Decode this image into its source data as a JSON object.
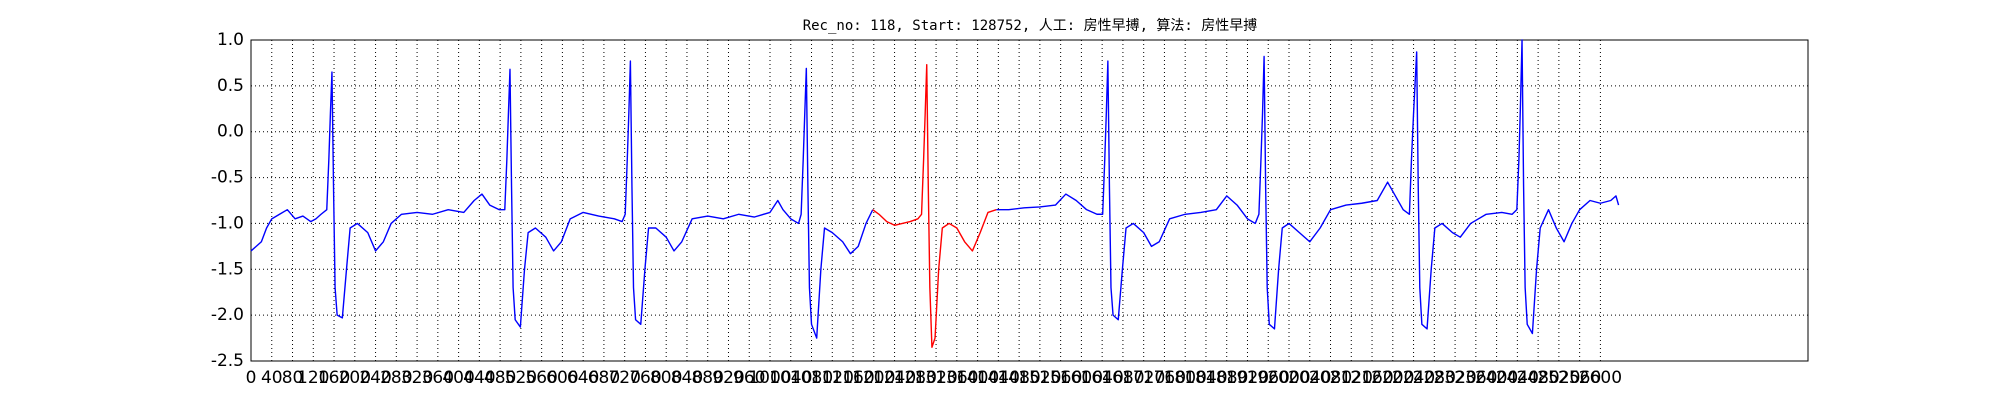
{
  "chart_data": {
    "type": "line",
    "title": "Rec_no: 118, Start: 128752, 人工: 房性早搏, 算法: 房性早搏",
    "xlim": [
      0,
      3000
    ],
    "xticks": [
      0,
      40,
      80,
      120,
      160,
      200,
      240,
      280,
      320,
      360,
      400,
      440,
      480,
      520,
      560,
      600,
      640,
      680,
      720,
      760,
      800,
      840,
      880,
      920,
      960,
      1000,
      1040,
      1080,
      1120,
      1160,
      1200,
      1240,
      1280,
      1320,
      1360,
      1400,
      1440,
      1480,
      1520,
      1560,
      1600,
      1640,
      1680,
      1720,
      1760,
      1800,
      1840,
      1880,
      1920,
      1960,
      2000,
      2040,
      2080,
      2120,
      2160,
      2200,
      2240,
      2280,
      2320,
      2360,
      2400,
      2440,
      2480,
      2520,
      2560,
      2600
    ],
    "ylim": [
      -2.5,
      1.0
    ],
    "yticks": [
      {
        "value": -2.5,
        "label": "-2.5"
      },
      {
        "value": -2.0,
        "label": "-2.0"
      },
      {
        "value": -1.5,
        "label": "-1.5"
      },
      {
        "value": -1.0,
        "label": "-1.0"
      },
      {
        "value": -0.5,
        "label": "-0.5"
      },
      {
        "value": 0.0,
        "label": "0.0"
      },
      {
        "value": 0.5,
        "label": "0.5"
      },
      {
        "value": 1.0,
        "label": "1.0"
      }
    ],
    "grid": true,
    "series": [
      {
        "color": "#0000ff",
        "x": [
          0,
          10,
          20,
          30,
          40,
          55,
          70,
          85,
          100,
          115,
          125,
          135,
          146,
          150,
          153,
          156,
          159,
          162,
          166,
          176,
          184,
          191,
          205,
          225,
          240,
          255,
          270,
          290,
          320,
          350,
          380,
          410,
          430,
          445,
          460,
          478,
          489,
          493,
          496,
          499,
          502,
          505,
          509,
          519,
          527,
          534,
          548,
          568,
          583,
          598,
          615,
          640,
          670,
          700,
          715,
          721,
          725,
          728,
          731,
          734,
          737,
          741,
          751,
          759,
          766,
          780,
          800,
          815,
          830,
          850,
          880,
          910,
          940,
          970,
          1000,
          1015,
          1025,
          1040,
          1055,
          1060,
          1064,
          1067,
          1070,
          1073,
          1076,
          1080,
          1090,
          1098,
          1105,
          1120,
          1140,
          1155,
          1170,
          1185,
          1198,
          1300,
          1436,
          1460,
          1490,
          1520,
          1550,
          1570,
          1590,
          1610,
          1630,
          1641,
          1645,
          1648,
          1651,
          1654,
          1657,
          1661,
          1671,
          1679,
          1686,
          1700,
          1720,
          1735,
          1750,
          1770,
          1800,
          1830,
          1860,
          1880,
          1900,
          1920,
          1935,
          1942,
          1946,
          1949,
          1952,
          1955,
          1958,
          1962,
          1972,
          1980,
          1987,
          2000,
          2020,
          2040,
          2060,
          2080,
          2110,
          2140,
          2170,
          2190,
          2205,
          2220,
          2232,
          2236,
          2240,
          2246,
          2249,
          2252,
          2256,
          2266,
          2274,
          2281,
          2295,
          2315,
          2330,
          2350,
          2380,
          2410,
          2430,
          2439,
          2443,
          2446,
          2449,
          2452,
          2455,
          2459,
          2469,
          2477,
          2484,
          2500,
          2515,
          2530,
          2545,
          2560,
          2580,
          2600,
          2620,
          2630,
          2635
        ],
        "values": [
          -1.3,
          -1.25,
          -1.2,
          -1.05,
          -0.95,
          -0.9,
          -0.85,
          -0.95,
          -0.92,
          -0.98,
          -0.95,
          -0.9,
          -0.85,
          -0.3,
          0.2,
          0.65,
          -0.6,
          -1.7,
          -2.0,
          -2.03,
          -1.5,
          -1.05,
          -1.0,
          -1.1,
          -1.3,
          -1.2,
          -1.0,
          -0.9,
          -0.88,
          -0.9,
          -0.85,
          -0.88,
          -0.75,
          -0.68,
          -0.8,
          -0.85,
          -0.85,
          -0.3,
          0.2,
          0.68,
          -0.6,
          -1.7,
          -2.05,
          -2.13,
          -1.5,
          -1.1,
          -1.05,
          -1.15,
          -1.3,
          -1.2,
          -0.95,
          -0.88,
          -0.92,
          -0.95,
          -0.98,
          -0.9,
          -0.3,
          0.2,
          0.77,
          -0.6,
          -1.7,
          -2.05,
          -2.1,
          -1.5,
          -1.05,
          -1.05,
          -1.15,
          -1.3,
          -1.2,
          -0.95,
          -0.92,
          -0.95,
          -0.9,
          -0.93,
          -0.88,
          -0.75,
          -0.85,
          -0.95,
          -1.0,
          -0.9,
          -0.3,
          0.2,
          0.69,
          -0.6,
          -1.7,
          -2.1,
          -2.25,
          -1.5,
          -1.05,
          -1.1,
          -1.2,
          -1.33,
          -1.25,
          -1.0,
          -0.85,
          null,
          -0.85,
          -0.85,
          -0.83,
          -0.82,
          -0.8,
          -0.68,
          -0.75,
          -0.85,
          -0.9,
          -0.9,
          -0.3,
          0.2,
          0.77,
          -0.6,
          -1.7,
          -2.0,
          -2.05,
          -1.5,
          -1.05,
          -1.0,
          -1.1,
          -1.25,
          -1.2,
          -0.95,
          -0.9,
          -0.88,
          -0.85,
          -0.7,
          -0.8,
          -0.95,
          -1.0,
          -0.9,
          -0.3,
          0.2,
          0.82,
          -0.6,
          -1.7,
          -2.1,
          -2.15,
          -1.5,
          -1.05,
          -1.0,
          -1.1,
          -1.2,
          -1.05,
          -0.85,
          -0.8,
          -0.78,
          -0.75,
          -0.55,
          -0.7,
          -0.85,
          -0.9,
          -0.3,
          0.2,
          0.87,
          -0.6,
          -1.7,
          -2.1,
          -2.15,
          -1.5,
          -1.05,
          -1.0,
          -1.1,
          -1.15,
          -1.0,
          -0.9,
          -0.88,
          -0.9,
          -0.85,
          -0.3,
          0.3,
          1.0,
          -0.6,
          -1.7,
          -2.1,
          -2.2,
          -1.5,
          -1.05,
          -0.85,
          -1.05,
          -1.2,
          -1.0,
          -0.85,
          -0.75,
          -0.78,
          -0.75,
          -0.7,
          -0.8
        ]
      },
      {
        "color": "#ff0000",
        "x": [
          1198,
          1210,
          1225,
          1240,
          1255,
          1270,
          1285,
          1292,
          1296,
          1299,
          1302,
          1305,
          1308,
          1312,
          1318,
          1325,
          1332,
          1345,
          1360,
          1375,
          1390,
          1405,
          1420,
          1436
        ],
        "values": [
          -0.85,
          -0.9,
          -0.98,
          -1.02,
          -1.0,
          -0.98,
          -0.95,
          -0.9,
          -0.3,
          0.2,
          0.73,
          -0.6,
          -1.7,
          -2.35,
          -2.25,
          -1.5,
          -1.05,
          -1.0,
          -1.05,
          -1.2,
          -1.3,
          -1.1,
          -0.88,
          -0.85
        ]
      }
    ]
  }
}
